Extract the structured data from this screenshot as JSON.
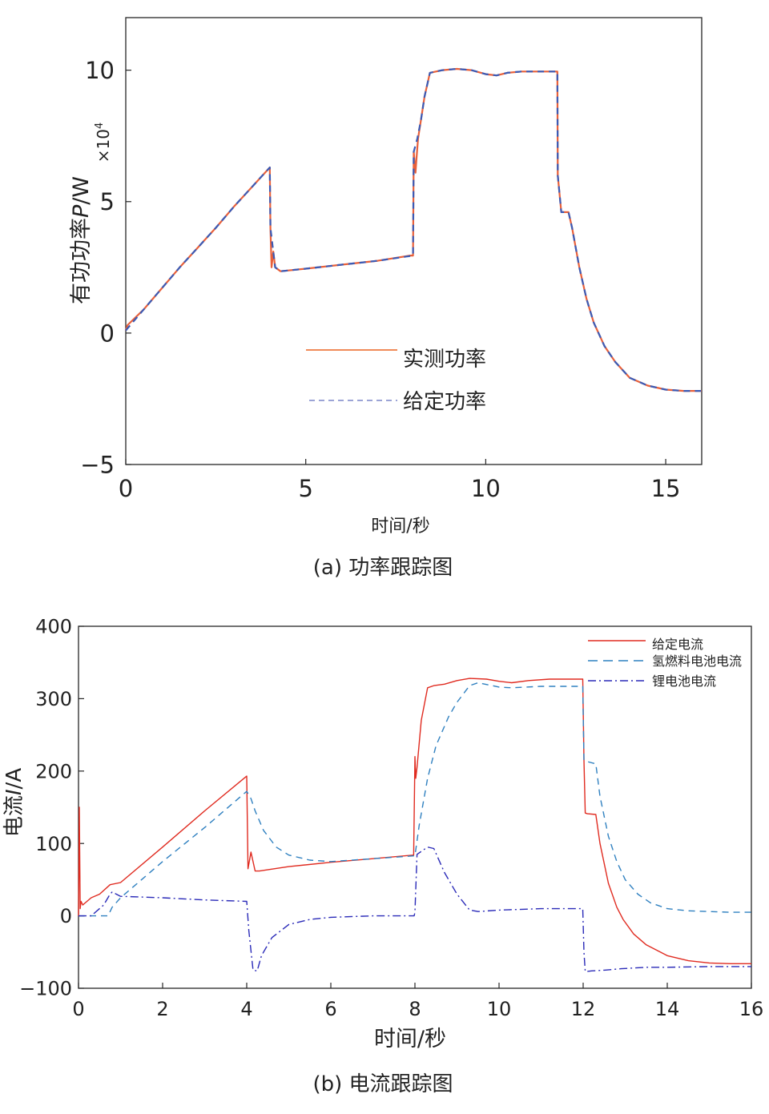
{
  "chart_data": [
    {
      "id": "a",
      "type": "line",
      "caption": "(a) 功率跟踪图",
      "xlabel": "时间/秒",
      "ylabel_prefix": "有功功率",
      "ylabel_var": "P",
      "ylabel_unit": "/W",
      "exponent_base": "×10",
      "exponent_power": "4",
      "xlim": [
        0,
        16
      ],
      "ylim": [
        -5,
        12
      ],
      "xticks": [
        0,
        5,
        10,
        15
      ],
      "xtick_labels": [
        "0",
        "5",
        "10",
        "15"
      ],
      "yticks": [
        -5,
        0,
        5,
        10
      ],
      "ytick_labels": [
        "−5",
        "0",
        "5",
        "10"
      ],
      "legend": {
        "location": "center",
        "entries": [
          "实测功率",
          "给定功率"
        ]
      },
      "series": [
        {
          "name": "实测功率",
          "color": "#e8603a",
          "style": "solid",
          "x": [
            0,
            0.05,
            0.5,
            1,
            1.5,
            2,
            2.5,
            3,
            3.5,
            4.0,
            4.02,
            4.05,
            4.1,
            4.15,
            4.3,
            5,
            6,
            7,
            7.9,
            7.98,
            8.0,
            8.05,
            8.08,
            8.12,
            8.2,
            8.3,
            8.45,
            8.8,
            9.2,
            9.6,
            10.0,
            10.3,
            10.6,
            11,
            11.5,
            11.99,
            12.0,
            12.05,
            12.1,
            12.3,
            12.4,
            12.6,
            12.8,
            13.0,
            13.3,
            13.6,
            14.0,
            14.5,
            15.0,
            15.5,
            16.0
          ],
          "y": [
            0.1,
            0.3,
            0.9,
            1.7,
            2.5,
            3.25,
            4.0,
            4.8,
            5.55,
            6.3,
            4.0,
            2.5,
            3.1,
            2.5,
            2.35,
            2.45,
            2.6,
            2.75,
            2.95,
            2.95,
            6.9,
            6.1,
            6.7,
            7.4,
            8.1,
            9.0,
            9.9,
            10.0,
            10.05,
            10.0,
            9.85,
            9.8,
            9.9,
            9.95,
            9.95,
            9.95,
            6.0,
            5.3,
            4.6,
            4.6,
            4.0,
            2.5,
            1.3,
            0.4,
            -0.5,
            -1.1,
            -1.7,
            -2.0,
            -2.15,
            -2.2,
            -2.2
          ]
        },
        {
          "name": "给定功率",
          "color": "#3b5bb5",
          "style": "dashed",
          "x": [
            0,
            0.5,
            1,
            1.5,
            2,
            2.5,
            3,
            3.5,
            4.0,
            4.02,
            4.15,
            4.3,
            5,
            6,
            7,
            7.98,
            8.0,
            8.1,
            8.2,
            8.3,
            8.45,
            8.8,
            9.2,
            9.6,
            10.0,
            10.3,
            10.6,
            11,
            11.5,
            11.99,
            12.0,
            12.1,
            12.3,
            12.4,
            12.6,
            12.8,
            13.0,
            13.3,
            13.6,
            14.0,
            14.5,
            15.0,
            15.5,
            16.0
          ],
          "y": [
            0.1,
            0.9,
            1.7,
            2.5,
            3.25,
            4.0,
            4.8,
            5.55,
            6.3,
            4.0,
            2.5,
            2.35,
            2.45,
            2.6,
            2.75,
            2.95,
            6.9,
            7.4,
            8.1,
            9.0,
            9.9,
            10.0,
            10.05,
            10.0,
            9.85,
            9.8,
            9.9,
            9.95,
            9.95,
            9.95,
            6.0,
            4.6,
            4.6,
            4.0,
            2.5,
            1.3,
            0.4,
            -0.5,
            -1.1,
            -1.7,
            -2.0,
            -2.15,
            -2.2,
            -2.2
          ]
        }
      ]
    },
    {
      "id": "b",
      "type": "line",
      "caption": "(b) 电流跟踪图",
      "xlabel": "时间/秒",
      "ylabel_prefix": "电流",
      "ylabel_var": "I",
      "ylabel_unit": "/A",
      "xlim": [
        0,
        16
      ],
      "ylim": [
        -100,
        400
      ],
      "xticks": [
        0,
        2,
        4,
        6,
        8,
        10,
        12,
        14,
        16
      ],
      "xtick_labels": [
        "0",
        "2",
        "4",
        "6",
        "8",
        "10",
        "12",
        "14",
        "16"
      ],
      "yticks": [
        -100,
        0,
        100,
        200,
        300,
        400
      ],
      "ytick_labels": [
        "−100",
        "0",
        "100",
        "200",
        "300",
        "400"
      ],
      "legend": {
        "location": "top-right",
        "entries": [
          "给定电流",
          "氢燃料电池电流",
          "锂电池电流"
        ]
      },
      "series": [
        {
          "name": "给定电流",
          "color": "#e02b20",
          "style": "solid",
          "x": [
            0,
            0.02,
            0.04,
            0.06,
            0.1,
            0.3,
            0.5,
            0.75,
            1,
            2,
            3,
            4.0,
            4.03,
            4.1,
            4.15,
            4.2,
            4.3,
            5,
            6,
            7,
            7.97,
            8.0,
            8.02,
            8.05,
            8.15,
            8.3,
            8.45,
            8.7,
            9.0,
            9.3,
            9.7,
            10.0,
            10.3,
            10.7,
            11.2,
            11.5,
            11.99,
            12.02,
            12.05,
            12.1,
            12.3,
            12.4,
            12.6,
            12.8,
            12.95,
            13.2,
            13.5,
            14.0,
            14.5,
            15.0,
            15.5,
            16.0
          ],
          "y": [
            0,
            150,
            10,
            20,
            15,
            25,
            30,
            43,
            46,
            95,
            145,
            193,
            65,
            88,
            75,
            62,
            62,
            68,
            74,
            79,
            84,
            220,
            190,
            205,
            270,
            315,
            318,
            320,
            325,
            328,
            327,
            324,
            322,
            325,
            327,
            327,
            327,
            215,
            142,
            141,
            140,
            100,
            45,
            12,
            -5,
            -25,
            -40,
            -55,
            -62,
            -65,
            -66,
            -66
          ]
        },
        {
          "name": "氢燃料电池电流",
          "color": "#2f80c0",
          "style": "dashed",
          "x": [
            0,
            0.3,
            0.7,
            0.8,
            1,
            2,
            3,
            4.0,
            4.1,
            4.2,
            4.4,
            4.7,
            5.0,
            5.5,
            6.0,
            7,
            8.0,
            8.1,
            8.3,
            8.5,
            8.8,
            9.0,
            9.3,
            9.5,
            10.0,
            10.3,
            11,
            11.99,
            12.02,
            12.1,
            12.3,
            12.4,
            12.6,
            12.8,
            13.0,
            13.3,
            13.6,
            14.0,
            14.5,
            15.0,
            15.5,
            16.0
          ],
          "y": [
            0,
            0,
            0,
            12,
            25,
            75,
            122,
            172,
            162,
            145,
            118,
            95,
            84,
            77,
            75,
            79,
            83,
            125,
            190,
            235,
            275,
            295,
            318,
            322,
            316,
            315,
            317,
            317,
            215,
            213,
            210,
            165,
            110,
            75,
            50,
            30,
            18,
            10,
            7,
            6,
            5,
            5
          ]
        },
        {
          "name": "锂电池电流",
          "color": "#2a2ab8",
          "style": "dashdot",
          "x": [
            0,
            0.3,
            0.6,
            0.75,
            0.8,
            1,
            2,
            3,
            4.0,
            4.05,
            4.15,
            4.25,
            4.35,
            4.6,
            5,
            5.5,
            6,
            7,
            7.98,
            8.0,
            8.05,
            8.3,
            8.45,
            8.7,
            9.0,
            9.3,
            9.5,
            10,
            11,
            11.99,
            12.02,
            12.05,
            12.2,
            12.5,
            12.9,
            13.5,
            14,
            15,
            16
          ],
          "y": [
            0,
            0,
            15,
            30,
            33,
            27,
            25,
            22,
            20,
            -20,
            -75,
            -76,
            -55,
            -30,
            -12,
            -5,
            -2,
            0,
            0,
            5,
            85,
            95,
            93,
            60,
            30,
            8,
            6,
            8,
            10,
            10,
            -50,
            -77,
            -76,
            -75,
            -73,
            -71,
            -71,
            -70,
            -70
          ]
        }
      ]
    }
  ]
}
